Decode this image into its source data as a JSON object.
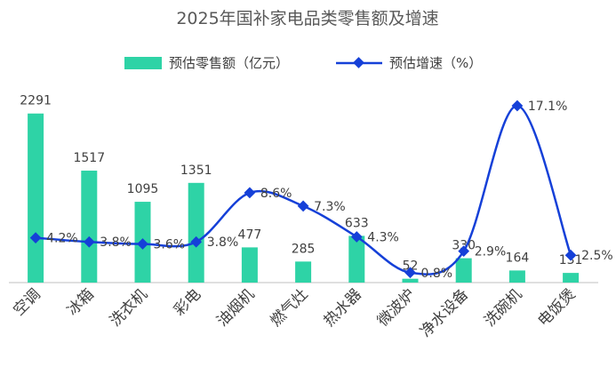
{
  "chart_data": {
    "type": "bar",
    "title": "2025年国补家电品类零售额及增速",
    "categories": [
      "空调",
      "冰箱",
      "洗衣机",
      "彩电",
      "油烟机",
      "燃气灶",
      "热水器",
      "微波炉",
      "净水设备",
      "洗碗机",
      "电饭煲"
    ],
    "series": [
      {
        "name": "预估零售额（亿元）",
        "type": "bar",
        "axis": "left",
        "values": [
          2291,
          1517,
          1095,
          1351,
          477,
          285,
          633,
          52,
          330,
          164,
          131
        ],
        "labels": [
          "2291",
          "1517",
          "1095",
          "1351",
          "477",
          "285",
          "633",
          "52",
          "330",
          "164",
          "131"
        ]
      },
      {
        "name": "预估增速（%）",
        "type": "line",
        "axis": "right",
        "smooth": true,
        "values": [
          4.2,
          3.8,
          3.6,
          3.8,
          8.6,
          7.3,
          4.3,
          0.8,
          2.9,
          17.1,
          2.5
        ],
        "labels": [
          "4.2%",
          "3.8%",
          "3.6%",
          "3.8%",
          "8.6%",
          "7.3%",
          "4.3%",
          "0.8%",
          "2.9%",
          "17.1%",
          "2.5%"
        ]
      }
    ],
    "ylim": [
      0,
      2300
    ],
    "y2lim": [
      0,
      17.1
    ],
    "grid": false,
    "legend": "top-center",
    "colors": {
      "bar": "#2ed3a6",
      "line": "#1540d8",
      "axis": "#bfbfbf",
      "text": "#404040",
      "title": "#595959"
    }
  }
}
